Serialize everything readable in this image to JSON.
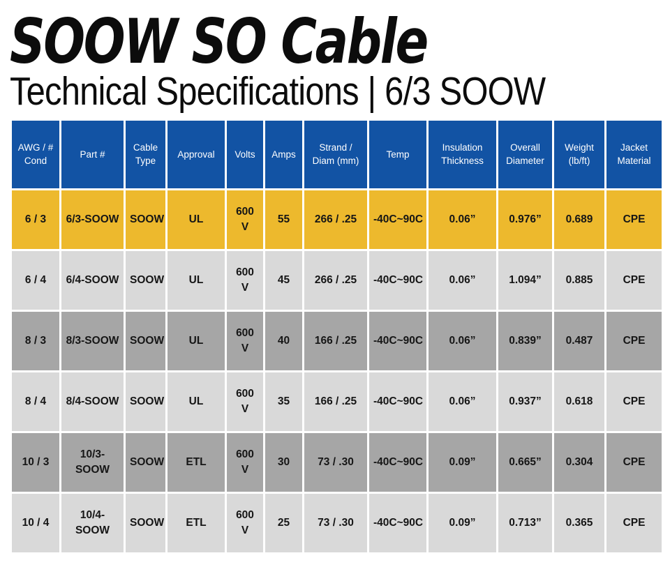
{
  "page": {
    "title": "SOOW SO Cable",
    "subtitle": "Technical Specifications | 6/3 SOOW"
  },
  "colors": {
    "header_bg": "#1253A4",
    "header_text": "#FFFFFF",
    "highlight_row_bg": "#EDB92D",
    "row_light_bg": "#D9D9D9",
    "row_dark_bg": "#A6A6A6",
    "text": "#161616",
    "background": "#FFFFFF"
  },
  "table": {
    "columns": [
      "AWG / # Cond",
      "Part #",
      "Cable Type",
      "Approval",
      "Volts",
      "Amps",
      "Strand / Diam (mm)",
      "Temp",
      "Insulation Thickness",
      "Overall Diameter",
      "Weight (lb/ft)",
      "Jacket Material"
    ],
    "rows": [
      {
        "shade": "highlight",
        "cells": [
          "6 / 3",
          "6/3-SOOW",
          "SOOW",
          "UL",
          "600 V",
          "55",
          "266 / .25",
          "-40C~90C",
          "0.06”",
          "0.976”",
          "0.689",
          "CPE"
        ]
      },
      {
        "shade": "light",
        "cells": [
          "6 / 4",
          "6/4-SOOW",
          "SOOW",
          "UL",
          "600 V",
          "45",
          "266 / .25",
          "-40C~90C",
          "0.06”",
          "1.094”",
          "0.885",
          "CPE"
        ]
      },
      {
        "shade": "dark",
        "cells": [
          "8 / 3",
          "8/3-SOOW",
          "SOOW",
          "UL",
          "600 V",
          "40",
          "166 / .25",
          "-40C~90C",
          "0.06”",
          "0.839”",
          "0.487",
          "CPE"
        ]
      },
      {
        "shade": "light",
        "cells": [
          "8 / 4",
          "8/4-SOOW",
          "SOOW",
          "UL",
          "600 V",
          "35",
          "166 / .25",
          "-40C~90C",
          "0.06”",
          "0.937”",
          "0.618",
          "CPE"
        ]
      },
      {
        "shade": "dark",
        "cells": [
          "10 / 3",
          "10/3-SOOW",
          "SOOW",
          "ETL",
          "600 V",
          "30",
          "73 / .30",
          "-40C~90C",
          "0.09”",
          "0.665”",
          "0.304",
          "CPE"
        ]
      },
      {
        "shade": "light",
        "cells": [
          "10 / 4",
          "10/4-SOOW",
          "SOOW",
          "ETL",
          "600 V",
          "25",
          "73 / .30",
          "-40C~90C",
          "0.09”",
          "0.713”",
          "0.365",
          "CPE"
        ]
      }
    ]
  }
}
